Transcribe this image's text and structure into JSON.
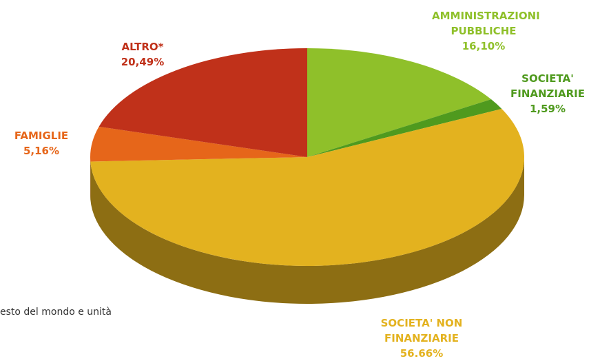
{
  "chart_data": {
    "type": "pie",
    "categories": [
      "AMMINISTRAZIONI PUBBLICHE",
      "SOCIETA' FINANZIARIE",
      "SOCIETA' NON FINANZIARIE",
      "FAMIGLIE",
      "ALTRO*"
    ],
    "values": [
      16.1,
      1.59,
      56.66,
      5.16,
      20.49
    ],
    "value_labels": [
      "16,10%",
      "1,59%",
      "56.66%",
      "5,16%",
      "20,49%"
    ],
    "colors": [
      "#8fc02a",
      "#4f9a1e",
      "#e3b21f",
      "#e6661a",
      "#c0311a"
    ],
    "footnote": "esto del mondo e unità"
  }
}
